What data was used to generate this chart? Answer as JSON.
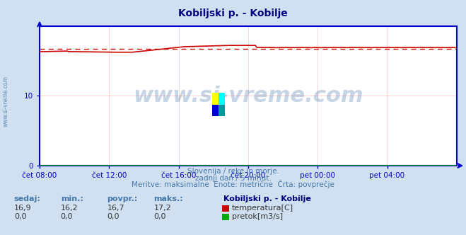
{
  "title": "Kobiljski p. - Kobilje",
  "title_color": "#000080",
  "bg_color": "#d0e0f0",
  "plot_bg_color": "#ffffff",
  "grid_color": "#ffbbbb",
  "axis_color": "#0000cc",
  "temp_line_color": "#cc0000",
  "temp_avg_line_color": "#cc0000",
  "flow_line_color": "#00aa00",
  "watermark_color": "#4477aa",
  "xlim_start": 0,
  "xlim_end": 288,
  "ylim": [
    0,
    20
  ],
  "yticks": [
    0,
    10
  ],
  "xtick_labels": [
    "čet 08:00",
    "čet 12:00",
    "čet 16:00",
    "čet 20:00",
    "pet 00:00",
    "pet 04:00"
  ],
  "xtick_positions": [
    0,
    48,
    96,
    144,
    192,
    240
  ],
  "temp_avg": 16.7,
  "temp_min": 16.2,
  "temp_max": 17.2,
  "temp_current": 16.9,
  "subtitle1": "Slovenija / reke in morje.",
  "subtitle2": "zadnji dan / 5 minut.",
  "subtitle3": "Meritve: maksimalne  Enote: metrične  Črta: povprečje",
  "legend_title": "Kobiljski p. - Kobilje",
  "legend_items": [
    "temperatura[C]",
    "pretok[m3/s]"
  ],
  "legend_colors": [
    "#cc0000",
    "#00aa00"
  ],
  "table_headers": [
    "sedaj:",
    "min.:",
    "povpr.:",
    "maks.:"
  ],
  "table_values_temp": [
    "16,9",
    "16,2",
    "16,7",
    "17,2"
  ],
  "table_values_flow": [
    "0,0",
    "0,0",
    "0,0",
    "0,0"
  ],
  "watermark": "www.si-vreme.com"
}
